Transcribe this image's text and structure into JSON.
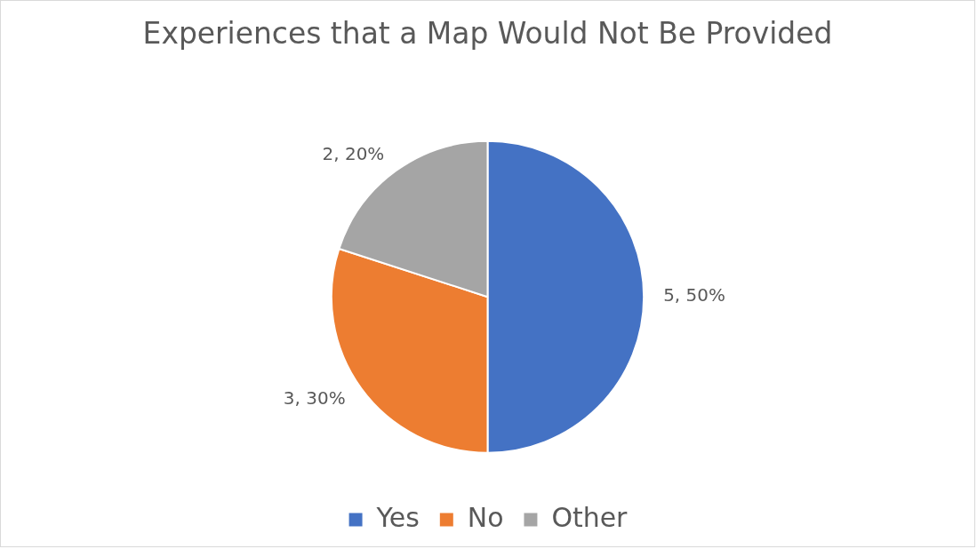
{
  "chart_data": {
    "type": "pie",
    "title": "Experiences that a Map Would Not Be Provided",
    "categories": [
      "Yes",
      "No",
      "Other"
    ],
    "values": [
      5,
      3,
      2
    ],
    "colors": [
      "#4472c4",
      "#ed7d31",
      "#a5a5a5"
    ],
    "value_labels": [
      "5, 50%",
      "3, 30%",
      "2, 20%"
    ],
    "legend": "bottom"
  }
}
